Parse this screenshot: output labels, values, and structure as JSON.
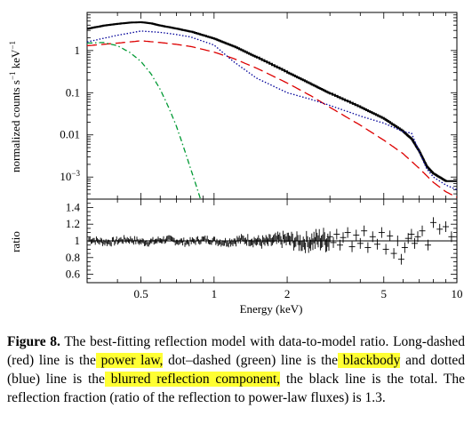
{
  "chart_data": [
    {
      "type": "line",
      "panel": "spectrum",
      "ylabel_parts": {
        "base": "normalized counts s",
        "exp1": "−1",
        "mid": " keV",
        "exp2": "−1"
      },
      "yscale": "log",
      "xscale": "log",
      "xlim": [
        0.3,
        10
      ],
      "ylim": [
        0.0003,
        8
      ],
      "yticks": [
        {
          "value": 1,
          "label": "1"
        },
        {
          "value": 0.1,
          "label": "0.1"
        },
        {
          "value": 0.01,
          "label": "0.01"
        },
        {
          "value": 0.001,
          "label_base": "10",
          "label_exp": "−3"
        }
      ],
      "series": [
        {
          "role": "total",
          "color": "#000000",
          "style": "solid",
          "x": [
            0.3,
            0.35,
            0.4,
            0.45,
            0.5,
            0.55,
            0.6,
            0.7,
            0.8,
            1,
            1.2,
            1.5,
            2,
            2.5,
            3,
            4,
            5,
            6,
            6.5,
            7,
            7.5,
            8,
            9,
            10
          ],
          "y": [
            3.3,
            3.9,
            4.3,
            4.6,
            4.7,
            4.4,
            3.9,
            3.3,
            2.8,
            1.9,
            1.25,
            0.68,
            0.3,
            0.16,
            0.095,
            0.045,
            0.024,
            0.012,
            0.008,
            0.004,
            0.0018,
            0.0012,
            0.0008,
            0.0008
          ]
        },
        {
          "role": "power law",
          "color": "#dd0000",
          "style": "dashed",
          "x": [
            0.3,
            0.4,
            0.5,
            0.6,
            0.7,
            0.8,
            1,
            1.2,
            1.5,
            2,
            2.5,
            3,
            4,
            5,
            6,
            7,
            8,
            9,
            10
          ],
          "y": [
            1.3,
            1.5,
            1.7,
            1.55,
            1.4,
            1.25,
            0.92,
            0.65,
            0.38,
            0.17,
            0.085,
            0.045,
            0.017,
            0.0075,
            0.0036,
            0.0016,
            0.00075,
            0.00045,
            0.00033
          ]
        },
        {
          "role": "blackbody",
          "color": "#009933",
          "style": "dotdash",
          "x": [
            0.3,
            0.35,
            0.4,
            0.45,
            0.5,
            0.55,
            0.6,
            0.65,
            0.7,
            0.75,
            0.8,
            0.85,
            0.9
          ],
          "y": [
            1.5,
            1.55,
            1.3,
            0.9,
            0.55,
            0.28,
            0.12,
            0.045,
            0.016,
            0.005,
            0.0016,
            0.00055,
            0.0002
          ]
        },
        {
          "role": "blurred reflection",
          "color": "#000099",
          "style": "dotted",
          "x": [
            0.3,
            0.4,
            0.5,
            0.6,
            0.7,
            0.8,
            1,
            1.2,
            1.5,
            2,
            2.5,
            3,
            4,
            5,
            6,
            6.5,
            7,
            7.5,
            8,
            9,
            10
          ],
          "y": [
            1.6,
            2.3,
            2.9,
            2.7,
            2.4,
            2.1,
            1.35,
            0.55,
            0.22,
            0.1,
            0.07,
            0.05,
            0.028,
            0.019,
            0.012,
            0.011,
            0.004,
            0.0016,
            0.001,
            0.00065,
            0.0005
          ]
        }
      ]
    },
    {
      "type": "scatter",
      "panel": "ratio",
      "ylabel": "ratio",
      "xlabel": "Energy (keV)",
      "xscale": "log",
      "xlim": [
        0.3,
        10
      ],
      "ylim": [
        0.5,
        1.5
      ],
      "reference_line": 1,
      "yticks": [
        {
          "value": 1.4,
          "label": "1.4"
        },
        {
          "value": 1.2,
          "label": "1.2"
        },
        {
          "value": 1,
          "label": "1"
        },
        {
          "value": 0.8,
          "label": "0.8"
        },
        {
          "value": 0.6,
          "label": "0.6"
        }
      ],
      "xticks": [
        {
          "value": 0.5,
          "label": "0.5"
        },
        {
          "value": 1,
          "label": "1"
        },
        {
          "value": 2,
          "label": "2"
        },
        {
          "value": 5,
          "label": "5"
        },
        {
          "value": 10,
          "label": "10"
        }
      ],
      "points": [
        {
          "x": 3.0,
          "y": 1.05
        },
        {
          "x": 3.1,
          "y": 0.98
        },
        {
          "x": 3.2,
          "y": 1.08
        },
        {
          "x": 3.3,
          "y": 0.95
        },
        {
          "x": 3.4,
          "y": 1.04
        },
        {
          "x": 3.55,
          "y": 1.1
        },
        {
          "x": 3.7,
          "y": 0.93
        },
        {
          "x": 3.85,
          "y": 1.07
        },
        {
          "x": 4.0,
          "y": 0.97
        },
        {
          "x": 4.15,
          "y": 1.12
        },
        {
          "x": 4.3,
          "y": 0.92
        },
        {
          "x": 4.5,
          "y": 1.05
        },
        {
          "x": 4.7,
          "y": 0.96
        },
        {
          "x": 4.9,
          "y": 1.1
        },
        {
          "x": 5.1,
          "y": 0.9
        },
        {
          "x": 5.3,
          "y": 1.06
        },
        {
          "x": 5.5,
          "y": 0.85
        },
        {
          "x": 5.7,
          "y": 1.0
        },
        {
          "x": 5.9,
          "y": 0.78
        },
        {
          "x": 6.1,
          "y": 0.92
        },
        {
          "x": 6.3,
          "y": 1.03
        },
        {
          "x": 6.5,
          "y": 1.08
        },
        {
          "x": 6.7,
          "y": 0.97
        },
        {
          "x": 6.9,
          "y": 1.05
        },
        {
          "x": 7.2,
          "y": 1.12
        },
        {
          "x": 7.6,
          "y": 0.95
        },
        {
          "x": 8.0,
          "y": 1.22
        },
        {
          "x": 8.5,
          "y": 1.14
        },
        {
          "x": 9.0,
          "y": 1.17
        },
        {
          "x": 9.5,
          "y": 1.05
        }
      ]
    }
  ],
  "caption": {
    "label": "Figure 8.",
    "t1": " The best-fitting reflection model with data-to-model ratio. Long-dashed (red) line is the",
    "h1": " power law,",
    "t2": " dot–dashed (green) line is the",
    "h2": " blackbody",
    "t3": " and dotted (blue) line is the",
    "h3": " blurred reflection component,",
    "t4": " the black line is the total. The reflection fraction (ratio of the reflection to power-law fluxes) is 1.3."
  }
}
